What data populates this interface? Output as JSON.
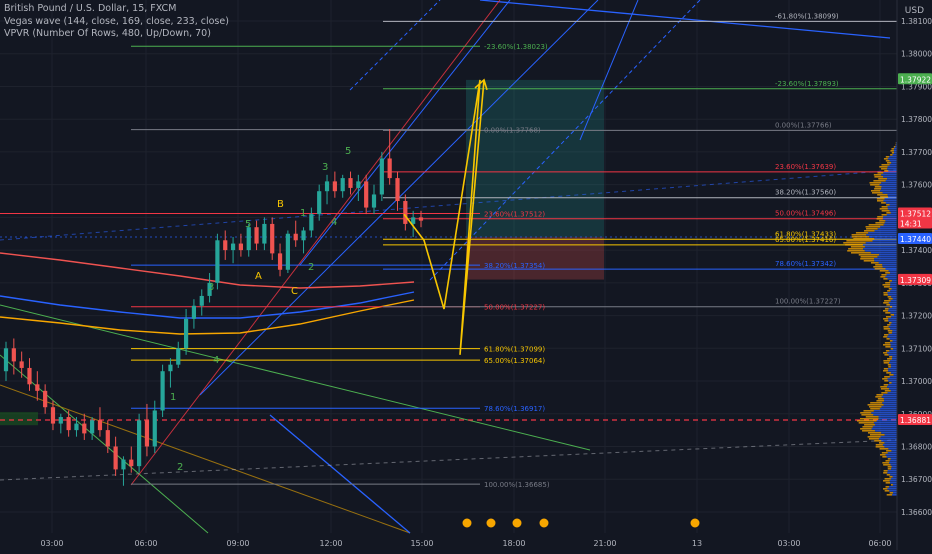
{
  "legend": {
    "symbol_line": "British Pound / U.S. Dollar, 15, FXCM",
    "indicator_1": "Vegas wave (144, close, 169, close, 233, close)",
    "indicator_2": "VPVR (Number Of Rows, 480, Up/Down, 70)"
  },
  "axis": {
    "currency": "USD"
  },
  "chart_data": {
    "type": "candlestick",
    "symbol": "GBPUSD",
    "timeframe": "15",
    "ylim": [
      1.3655,
      1.3825
    ],
    "y_ticks": [
      1.366,
      1.367,
      1.368,
      1.369,
      1.37,
      1.371,
      1.372,
      1.373,
      1.374,
      1.375,
      1.376,
      1.377,
      1.378,
      1.379,
      1.38,
      1.381
    ],
    "x_ticks": [
      "03:00",
      "06:00",
      "09:00",
      "12:00",
      "15:00",
      "18:00",
      "21:00",
      "13",
      "03:00",
      "06:00"
    ],
    "candles": [
      [
        1.3703,
        1.3712,
        1.37,
        1.371
      ],
      [
        1.371,
        1.3713,
        1.3702,
        1.3706
      ],
      [
        1.3706,
        1.3709,
        1.3701,
        1.3704
      ],
      [
        1.3704,
        1.3707,
        1.3697,
        1.3699
      ],
      [
        1.3699,
        1.3703,
        1.3694,
        1.3697
      ],
      [
        1.3697,
        1.3699,
        1.369,
        1.3692
      ],
      [
        1.3692,
        1.3694,
        1.3685,
        1.3687
      ],
      [
        1.3687,
        1.369,
        1.3684,
        1.3689
      ],
      [
        1.3689,
        1.3691,
        1.3683,
        1.3685
      ],
      [
        1.3685,
        1.3689,
        1.3683,
        1.3687
      ],
      [
        1.3687,
        1.369,
        1.3682,
        1.3684
      ],
      [
        1.3684,
        1.3689,
        1.3682,
        1.3688
      ],
      [
        1.3688,
        1.3692,
        1.3683,
        1.3685
      ],
      [
        1.3685,
        1.3688,
        1.3678,
        1.368
      ],
      [
        1.368,
        1.3683,
        1.3671,
        1.3673
      ],
      [
        1.3673,
        1.3677,
        1.3668,
        1.3676
      ],
      [
        1.3676,
        1.368,
        1.3672,
        1.3674
      ],
      [
        1.3674,
        1.369,
        1.3672,
        1.3688
      ],
      [
        1.3688,
        1.3693,
        1.3677,
        1.368
      ],
      [
        1.368,
        1.3694,
        1.3678,
        1.3691
      ],
      [
        1.3691,
        1.3705,
        1.3689,
        1.3703
      ],
      [
        1.3703,
        1.3707,
        1.3698,
        1.3705
      ],
      [
        1.3705,
        1.3712,
        1.3704,
        1.371
      ],
      [
        1.371,
        1.3722,
        1.3708,
        1.3719
      ],
      [
        1.3719,
        1.3725,
        1.3716,
        1.3723
      ],
      [
        1.3723,
        1.3728,
        1.372,
        1.3726
      ],
      [
        1.3726,
        1.3733,
        1.3724,
        1.373
      ],
      [
        1.373,
        1.3745,
        1.3728,
        1.3743
      ],
      [
        1.3743,
        1.3746,
        1.3737,
        1.374
      ],
      [
        1.374,
        1.3744,
        1.3736,
        1.3742
      ],
      [
        1.3742,
        1.3745,
        1.3738,
        1.374
      ],
      [
        1.374,
        1.3748,
        1.3738,
        1.3747
      ],
      [
        1.3747,
        1.3749,
        1.374,
        1.3742
      ],
      [
        1.3742,
        1.375,
        1.374,
        1.3748
      ],
      [
        1.3748,
        1.375,
        1.3737,
        1.3739
      ],
      [
        1.3739,
        1.3742,
        1.3732,
        1.3734
      ],
      [
        1.3734,
        1.3746,
        1.3733,
        1.3745
      ],
      [
        1.3745,
        1.3749,
        1.3741,
        1.3743
      ],
      [
        1.3743,
        1.3747,
        1.3739,
        1.3746
      ],
      [
        1.3746,
        1.3753,
        1.3744,
        1.3751
      ],
      [
        1.3751,
        1.376,
        1.3749,
        1.3758
      ],
      [
        1.3758,
        1.3763,
        1.3754,
        1.3761
      ],
      [
        1.3761,
        1.3764,
        1.3756,
        1.3758
      ],
      [
        1.3758,
        1.3763,
        1.3756,
        1.3762
      ],
      [
        1.3762,
        1.3764,
        1.3757,
        1.3759
      ],
      [
        1.3759,
        1.3763,
        1.3755,
        1.3761
      ],
      [
        1.3761,
        1.3763,
        1.3751,
        1.3753
      ],
      [
        1.3753,
        1.376,
        1.3751,
        1.3757
      ],
      [
        1.3757,
        1.377,
        1.3755,
        1.3768
      ],
      [
        1.3768,
        1.3777,
        1.376,
        1.3762
      ],
      [
        1.3762,
        1.3764,
        1.3752,
        1.3755
      ],
      [
        1.3755,
        1.3757,
        1.3746,
        1.3748
      ],
      [
        1.3748,
        1.3752,
        1.3744,
        1.375
      ],
      [
        1.375,
        1.3752,
        1.3747,
        1.3749
      ]
    ],
    "vegas_wave_colors": [
      "#2962ff",
      "#f7a600",
      "#ef5350"
    ],
    "fibonacci_levels_left": [
      {
        "label": "-23.60%(1.38023)",
        "value": 1.38023,
        "color": "#4caf50"
      },
      {
        "label": "0.00%(1.37768)",
        "value": 1.37768,
        "color": "#787b86"
      },
      {
        "label": "23.60%(1.37512)",
        "value": 1.37512,
        "color": "#f23645"
      },
      {
        "label": "38.20%(1.37354)",
        "value": 1.37354,
        "color": "#2962ff"
      },
      {
        "label": "50.00%(1.37227)",
        "value": 1.37227,
        "color": "#f23645"
      },
      {
        "label": "61.80%(1.37099)",
        "value": 1.37099,
        "color": "#f7c600"
      },
      {
        "label": "65.00%(1.37064)",
        "value": 1.37064,
        "color": "#f7c600"
      },
      {
        "label": "78.60%(1.36917)",
        "value": 1.36917,
        "color": "#2962ff"
      },
      {
        "label": "100.00%(1.36685)",
        "value": 1.36685,
        "color": "#787b86"
      }
    ],
    "fibonacci_levels_right": [
      {
        "label": "-61.80%(1.38099)",
        "value": 1.38099,
        "color": "#b2b5be"
      },
      {
        "label": "-23.60%(1.37893)",
        "value": 1.37893,
        "color": "#4caf50"
      },
      {
        "label": "0.00%(1.37766)",
        "value": 1.37766,
        "color": "#787b86"
      },
      {
        "label": "23.60%(1.37639)",
        "value": 1.37639,
        "color": "#f23645"
      },
      {
        "label": "38.20%(1.37560)",
        "value": 1.3756,
        "color": "#b2b5be"
      },
      {
        "label": "50.00%(1.37496)",
        "value": 1.37496,
        "color": "#f23645"
      },
      {
        "label": "61.80%(1.37433)",
        "value": 1.37433,
        "color": "#f7c600"
      },
      {
        "label": "65.00%(1.37416)",
        "value": 1.37416,
        "color": "#f7c600"
      },
      {
        "label": "78.60%(1.37342)",
        "value": 1.37342,
        "color": "#2962ff"
      },
      {
        "label": "100.00%(1.37227)",
        "value": 1.37227,
        "color": "#787b86"
      }
    ],
    "wave_labels": [
      {
        "text": "1",
        "color": "#4caf50"
      },
      {
        "text": "2",
        "color": "#4caf50"
      },
      {
        "text": "3",
        "color": "#4caf50"
      },
      {
        "text": "4",
        "color": "#4caf50"
      },
      {
        "text": "5",
        "color": "#4caf50"
      },
      {
        "text": "A",
        "color": "#f7c600"
      },
      {
        "text": "B",
        "color": "#f7c600"
      },
      {
        "text": "C",
        "color": "#f7c600"
      },
      {
        "text": "1",
        "color": "#4caf50"
      },
      {
        "text": "2",
        "color": "#4caf50"
      },
      {
        "text": "3",
        "color": "#4caf50"
      },
      {
        "text": "4",
        "color": "#4caf50"
      },
      {
        "text": "5",
        "color": "#4caf50"
      }
    ],
    "price_labels": [
      {
        "text": "1.37922",
        "color": "#4caf50"
      },
      {
        "text": "1.37512",
        "color": "#f23645"
      },
      {
        "text": "14:31",
        "color": "#f23645"
      },
      {
        "text": "1.37440",
        "color": "#2962ff"
      },
      {
        "text": "1.37309",
        "color": "#f23645"
      },
      {
        "text": "1.36881",
        "color": "#f23645"
      }
    ],
    "position_tool": {
      "entry": 1.3744,
      "target": 1.3792,
      "stop": 1.3731
    },
    "projection_path": [
      1.3751,
      1.3743,
      1.3722,
      1.3792,
      1.3708,
      1.3792
    ],
    "current_price": 1.37512
  }
}
